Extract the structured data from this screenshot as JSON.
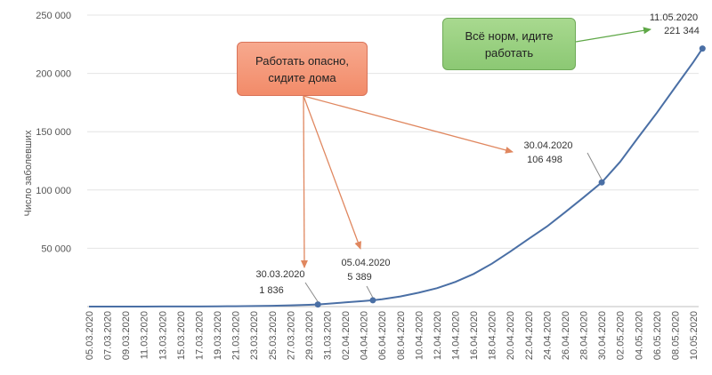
{
  "chart_data": {
    "type": "line",
    "title": "",
    "ylabel": "Число заболевших",
    "xlabel": "",
    "ylim": [
      0,
      250000
    ],
    "y_ticks": [
      {
        "value": 50000,
        "label": "50 000"
      },
      {
        "value": 100000,
        "label": "100 000"
      },
      {
        "value": 150000,
        "label": "150 000"
      },
      {
        "value": 200000,
        "label": "200 000"
      },
      {
        "value": 250000,
        "label": "250 000"
      }
    ],
    "x_tick_labels": [
      "05.03.2020",
      "07.03.2020",
      "09.03.2020",
      "11.03.2020",
      "13.03.2020",
      "15.03.2020",
      "17.03.2020",
      "19.03.2020",
      "21.03.2020",
      "23.03.2020",
      "25.03.2020",
      "27.03.2020",
      "29.03.2020",
      "31.03.2020",
      "02.04.2020",
      "04.04.2020",
      "06.04.2020",
      "08.04.2020",
      "10.04.2020",
      "12.04.2020",
      "14.04.2020",
      "16.04.2020",
      "18.04.2020",
      "20.04.2020",
      "22.04.2020",
      "24.04.2020",
      "26.04.2020",
      "28.04.2020",
      "30.04.2020",
      "02.05.2020",
      "04.05.2020",
      "06.05.2020",
      "08.05.2020",
      "10.05.2020"
    ],
    "grid": true,
    "series_color": "#4a6fa5",
    "x": [
      "05.03.2020",
      "07.03.2020",
      "09.03.2020",
      "11.03.2020",
      "13.03.2020",
      "15.03.2020",
      "17.03.2020",
      "19.03.2020",
      "21.03.2020",
      "23.03.2020",
      "25.03.2020",
      "27.03.2020",
      "29.03.2020",
      "30.03.2020",
      "31.03.2020",
      "02.04.2020",
      "04.04.2020",
      "05.04.2020",
      "06.04.2020",
      "08.04.2020",
      "10.04.2020",
      "12.04.2020",
      "14.04.2020",
      "16.04.2020",
      "18.04.2020",
      "20.04.2020",
      "22.04.2020",
      "24.04.2020",
      "26.04.2020",
      "28.04.2020",
      "30.04.2020",
      "02.05.2020",
      "04.05.2020",
      "06.05.2020",
      "08.05.2020",
      "10.05.2020",
      "11.05.2020"
    ],
    "values": [
      4,
      10,
      17,
      28,
      45,
      63,
      114,
      199,
      306,
      438,
      658,
      1036,
      1534,
      1836,
      2337,
      3548,
      4731,
      5389,
      6343,
      8672,
      11917,
      15770,
      21102,
      27938,
      36793,
      47121,
      57999,
      68622,
      80949,
      93558,
      106498,
      124054,
      145268,
      165929,
      187859,
      209688,
      221344
    ],
    "annotations": [
      {
        "name": "point-30-03",
        "x": "30.03.2020",
        "date": "30.03.2020",
        "value_label": "1 836"
      },
      {
        "name": "point-05-04",
        "x": "05.04.2020",
        "date": "05.04.2020",
        "value_label": "5 389"
      },
      {
        "name": "point-30-04",
        "x": "30.04.2020",
        "date": "30.04.2020",
        "value_label": "106 498"
      },
      {
        "name": "point-11-05",
        "x": "11.05.2020",
        "date": "11.05.2020",
        "value_label": "221 344"
      }
    ],
    "callouts": {
      "red": {
        "line1": "Работать опасно,",
        "line2": "сидите дома",
        "color": "#f28b69",
        "arrow_color": "#e0875f"
      },
      "green": {
        "line1": "Всё норм, идите",
        "line2": "работать",
        "color": "#8cc874",
        "arrow_color": "#5fa847"
      }
    }
  }
}
